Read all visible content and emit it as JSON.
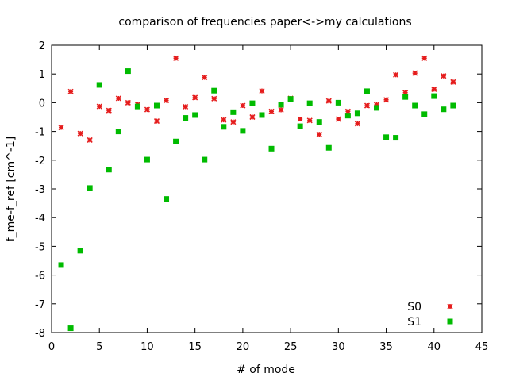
{
  "chart_data": {
    "type": "scatter",
    "title": "comparison of frequencies paper<->my calculations",
    "xlabel": "# of mode",
    "ylabel": "f_me-f_ref [cm^-1]",
    "xlim": [
      0,
      45
    ],
    "ylim": [
      -8,
      2
    ],
    "xticks": [
      0,
      5,
      10,
      15,
      20,
      25,
      30,
      35,
      40,
      45
    ],
    "yticks": [
      -8,
      -7,
      -6,
      -5,
      -4,
      -3,
      -2,
      -1,
      0,
      1,
      2
    ],
    "grid": false,
    "legend_position": "bottom-right",
    "series": [
      {
        "name": "S0",
        "color": "#e51c1c",
        "marker": "star",
        "x": [
          1,
          2,
          3,
          4,
          5,
          6,
          7,
          8,
          9,
          10,
          11,
          12,
          13,
          14,
          15,
          16,
          17,
          18,
          19,
          20,
          21,
          22,
          23,
          24,
          25,
          26,
          27,
          28,
          29,
          30,
          31,
          32,
          33,
          34,
          35,
          36,
          37,
          38,
          39,
          40,
          41,
          42
        ],
        "y": [
          -0.86,
          0.39,
          -1.07,
          -1.3,
          -0.13,
          -0.27,
          0.15,
          0.0,
          -0.06,
          -0.24,
          -0.64,
          0.08,
          1.55,
          -0.14,
          0.18,
          0.88,
          0.14,
          -0.6,
          -0.67,
          -0.1,
          -0.5,
          0.41,
          -0.3,
          -0.25,
          0.15,
          -0.57,
          -0.62,
          -1.1,
          0.06,
          -0.57,
          -0.3,
          -0.73,
          -0.1,
          -0.07,
          0.1,
          0.97,
          0.35,
          1.03,
          1.55,
          0.47,
          0.93,
          0.72
        ]
      },
      {
        "name": "S1",
        "color": "#00bb00",
        "marker": "square",
        "x": [
          1,
          2,
          3,
          4,
          5,
          6,
          7,
          8,
          9,
          10,
          11,
          12,
          13,
          14,
          15,
          16,
          17,
          18,
          19,
          20,
          21,
          22,
          23,
          24,
          25,
          26,
          27,
          28,
          29,
          30,
          31,
          32,
          33,
          34,
          35,
          36,
          37,
          38,
          39,
          40,
          41,
          42
        ],
        "y": [
          -5.65,
          -7.85,
          -5.15,
          -2.97,
          0.62,
          -2.33,
          -1.0,
          1.1,
          -0.13,
          -1.98,
          -0.1,
          -3.35,
          -1.35,
          -0.53,
          -0.43,
          -1.98,
          0.42,
          -0.84,
          -0.33,
          -0.98,
          -0.02,
          -0.43,
          -1.6,
          -0.07,
          0.13,
          -0.82,
          -0.02,
          -0.67,
          -1.57,
          0.0,
          -0.45,
          -0.37,
          0.4,
          -0.18,
          -1.2,
          -1.22,
          0.2,
          -0.1,
          -0.4,
          0.23,
          -0.23,
          -0.1
        ]
      }
    ]
  }
}
